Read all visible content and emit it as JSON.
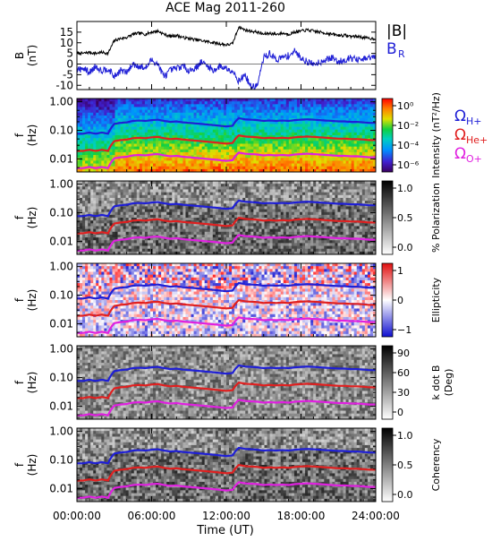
{
  "title": "ACE Mag 2011-260",
  "time_axis": {
    "label": "Time (UT)",
    "ticks": [
      "00:00:00",
      "06:00:00",
      "12:00:00",
      "18:00:00",
      "24:00:00"
    ],
    "range_hours": [
      0,
      24
    ]
  },
  "legend": {
    "B": {
      "text": "|B|",
      "color": "#000000"
    },
    "BR": {
      "text": "B",
      "sub": "R",
      "color": "#1f1fd6"
    },
    "OH": {
      "text": "Ω",
      "sub": "H+",
      "color": "#1f1fd6"
    },
    "OHe": {
      "text": "Ω",
      "sub": "He+",
      "color": "#e02020"
    },
    "OO": {
      "text": "Ω",
      "sub": "O+",
      "color": "#e020e0"
    }
  },
  "chart_data": [
    {
      "type": "line",
      "ylabel": "B",
      "yunit": "(nT)",
      "ylim": [
        -12,
        20
      ],
      "yticks": [
        "15",
        "10",
        "5",
        "0",
        "-5",
        "-10"
      ],
      "series": [
        {
          "name": "|B|",
          "color": "#000000",
          "x": [
            0,
            0.5,
            1,
            1.5,
            2,
            2.5,
            3,
            3.5,
            4,
            4.5,
            5,
            5.5,
            6,
            6.5,
            7,
            7.5,
            8,
            8.5,
            9,
            9.5,
            10,
            10.5,
            11,
            11.5,
            12,
            12.5,
            13,
            13.5,
            14,
            14.5,
            15,
            15.5,
            16,
            16.5,
            17,
            17.5,
            18,
            18.5,
            19,
            19.5,
            20,
            20.5,
            21,
            21.5,
            22,
            22.5,
            23,
            23.5,
            24
          ],
          "values": [
            5,
            5,
            5.5,
            5,
            5.5,
            5,
            11,
            12,
            12.5,
            14,
            14.5,
            14,
            15,
            15.5,
            14,
            13,
            13.5,
            12.5,
            12,
            11.5,
            11,
            10.5,
            10,
            9.5,
            9,
            9.5,
            17.5,
            16,
            15.5,
            15,
            14,
            14.5,
            14,
            14.5,
            14,
            15,
            15.5,
            16,
            15.5,
            15,
            14.5,
            14,
            13.5,
            13.5,
            13,
            13,
            12.5,
            12,
            12
          ]
        },
        {
          "name": "B",
          "color": "#1f1fd6",
          "x": [
            0,
            0.5,
            1,
            1.5,
            2,
            2.5,
            3,
            3.5,
            4,
            4.5,
            5,
            5.5,
            6,
            6.5,
            7,
            7.5,
            8,
            8.5,
            9,
            9.5,
            10,
            10.5,
            11,
            11.5,
            12,
            12.5,
            13,
            13.5,
            14,
            14.5,
            15,
            15.5,
            16,
            16.5,
            17,
            17.5,
            18,
            18.5,
            19,
            19.5,
            20,
            20.5,
            21,
            21.5,
            22,
            22.5,
            23,
            23.5,
            24
          ],
          "values": [
            -3,
            -2,
            -4,
            -1,
            -3,
            -2,
            -6,
            -3,
            -4,
            0,
            -1,
            -2,
            2,
            0,
            -6,
            -3,
            -2,
            -1,
            -3,
            -2,
            1,
            -1,
            -3,
            -1,
            -2,
            -3,
            -8,
            -5,
            -11,
            -10,
            3,
            5,
            2,
            3,
            4,
            6,
            3,
            1,
            0,
            1,
            2,
            3,
            1,
            2,
            3,
            2,
            2,
            3,
            3
          ]
        }
      ]
    },
    {
      "type": "heatmap",
      "ylabel": "f",
      "yunit": "(Hz)",
      "yticks": [
        "1.00",
        "0.10",
        "0.01"
      ],
      "colorbar": {
        "label": "Intensity (nT²/Hz)",
        "ticks": [
          "10⁰",
          "10⁻²",
          "10⁻⁴",
          "10⁻⁶"
        ],
        "scale": "rainbow"
      }
    },
    {
      "type": "heatmap",
      "ylabel": "f",
      "yunit": "(Hz)",
      "yticks": [
        "1.00",
        "0.10",
        "0.01"
      ],
      "colorbar": {
        "label": "% Polarization",
        "ticks": [
          "1.0",
          "0.5",
          "0.0"
        ],
        "scale": "gray"
      }
    },
    {
      "type": "heatmap",
      "ylabel": "f",
      "yunit": "(Hz)",
      "yticks": [
        "1.00",
        "0.10",
        "0.01"
      ],
      "colorbar": {
        "label": "Ellipticity",
        "ticks": [
          "1",
          "0",
          "−1"
        ],
        "scale": "bwr"
      }
    },
    {
      "type": "heatmap",
      "ylabel": "f",
      "yunit": "(Hz)",
      "yticks": [
        "1.00",
        "0.10",
        "0.01"
      ],
      "colorbar": {
        "label": "k dot B",
        "label2": "(Deg)",
        "ticks": [
          "90",
          "60",
          "30",
          "0"
        ],
        "scale": "gray"
      }
    },
    {
      "type": "heatmap",
      "ylabel": "f",
      "yunit": "(Hz)",
      "yticks": [
        "1.00",
        "0.10",
        "0.01"
      ],
      "colorbar": {
        "label": "Coherency",
        "ticks": [
          "1.0",
          "0.5",
          "0.0"
        ],
        "scale": "gray"
      }
    }
  ],
  "gyrofrequency_lines": {
    "note": "proton gyrofrequency f = 0.01524*|B| Hz; He+ = H+/4; O+ = H+/16",
    "colors": {
      "H": "#1f1fd6",
      "He": "#e02020",
      "O": "#e020e0"
    }
  }
}
